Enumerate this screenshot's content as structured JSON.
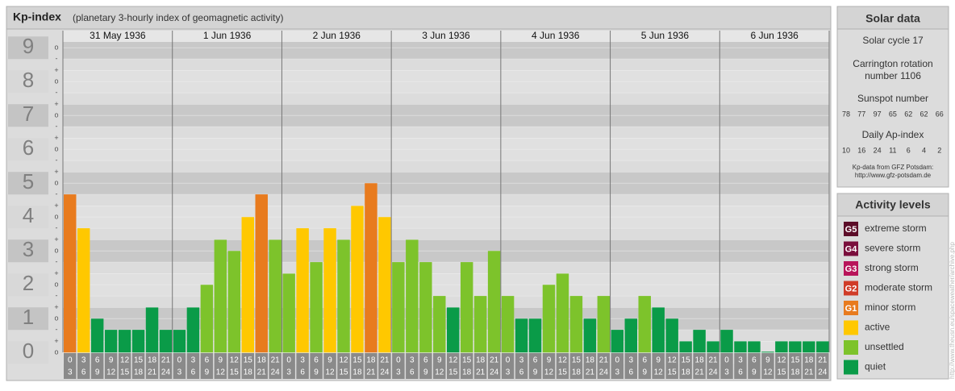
{
  "chart_data": {
    "type": "bar",
    "title": "Kp-index",
    "subtitle": "(planetary 3-hourly index of geomagnetic activity)",
    "ylim": [
      -0.33,
      9.33
    ],
    "yticks": [
      0,
      1,
      2,
      3,
      4,
      5,
      6,
      7,
      8,
      9
    ],
    "minor_yticks": [
      {
        "value": 0,
        "label": "o"
      },
      {
        "value": 0.33,
        "label": "+"
      },
      {
        "value": 0.67,
        "label": "-"
      },
      {
        "value": 1,
        "label": "o"
      },
      {
        "value": 1.33,
        "label": "+"
      },
      {
        "value": 1.67,
        "label": "-"
      },
      {
        "value": 2,
        "label": "o"
      },
      {
        "value": 2.33,
        "label": "+"
      },
      {
        "value": 2.67,
        "label": "-"
      },
      {
        "value": 3,
        "label": "o"
      },
      {
        "value": 3.33,
        "label": "+"
      },
      {
        "value": 3.67,
        "label": "-"
      },
      {
        "value": 4,
        "label": "o"
      },
      {
        "value": 4.33,
        "label": "+"
      },
      {
        "value": 4.67,
        "label": "-"
      },
      {
        "value": 5,
        "label": "o"
      },
      {
        "value": 5.33,
        "label": "+"
      },
      {
        "value": 5.67,
        "label": "-"
      },
      {
        "value": 6,
        "label": "o"
      },
      {
        "value": 6.33,
        "label": "+"
      },
      {
        "value": 6.67,
        "label": "-"
      },
      {
        "value": 7,
        "label": "o"
      },
      {
        "value": 7.33,
        "label": "+"
      },
      {
        "value": 7.67,
        "label": "-"
      },
      {
        "value": 8,
        "label": "o"
      },
      {
        "value": 8.33,
        "label": "+"
      },
      {
        "value": 8.67,
        "label": "-"
      },
      {
        "value": 9,
        "label": "o"
      }
    ],
    "hour_labels": [
      [
        "0",
        "3"
      ],
      [
        "3",
        "6"
      ],
      [
        "6",
        "9"
      ],
      [
        "9",
        "12"
      ],
      [
        "12",
        "15"
      ],
      [
        "15",
        "18"
      ],
      [
        "18",
        "21"
      ],
      [
        "21",
        "24"
      ]
    ],
    "days": [
      {
        "date": "31 May 1936",
        "values": [
          4.67,
          3.67,
          1,
          0.67,
          0.67,
          0.67,
          1.33,
          0.67
        ],
        "colors": [
          "#e87b1e",
          "#ffc800",
          "#0a9b48",
          "#0a9b48",
          "#0a9b48",
          "#0a9b48",
          "#0a9b48",
          "#0a9b48"
        ]
      },
      {
        "date": "1 Jun 1936",
        "values": [
          0.67,
          1.33,
          2,
          3.33,
          3,
          4,
          4.67,
          3.33
        ],
        "colors": [
          "#0a9b48",
          "#0a9b48",
          "#7dc32b",
          "#7dc32b",
          "#7dc32b",
          "#ffc800",
          "#e87b1e",
          "#7dc32b"
        ]
      },
      {
        "date": "2 Jun 1936",
        "values": [
          2.33,
          3.67,
          2.67,
          3.67,
          3.33,
          4.33,
          5,
          4
        ],
        "colors": [
          "#7dc32b",
          "#ffc800",
          "#7dc32b",
          "#ffc800",
          "#7dc32b",
          "#ffc800",
          "#e87b1e",
          "#ffc800"
        ]
      },
      {
        "date": "3 Jun 1936",
        "values": [
          2.67,
          3.33,
          2.67,
          1.67,
          1.33,
          2.67,
          1.67,
          3
        ],
        "colors": [
          "#7dc32b",
          "#7dc32b",
          "#7dc32b",
          "#7dc32b",
          "#0a9b48",
          "#7dc32b",
          "#7dc32b",
          "#7dc32b"
        ]
      },
      {
        "date": "4 Jun 1936",
        "values": [
          1.67,
          1,
          1,
          2,
          2.33,
          1.67,
          1,
          1.67
        ],
        "colors": [
          "#7dc32b",
          "#0a9b48",
          "#0a9b48",
          "#7dc32b",
          "#7dc32b",
          "#7dc32b",
          "#0a9b48",
          "#7dc32b"
        ]
      },
      {
        "date": "5 Jun 1936",
        "values": [
          0.67,
          1,
          1.67,
          1.33,
          1,
          0.33,
          0.67,
          0.33
        ],
        "colors": [
          "#0a9b48",
          "#0a9b48",
          "#7dc32b",
          "#0a9b48",
          "#0a9b48",
          "#0a9b48",
          "#0a9b48",
          "#0a9b48"
        ]
      },
      {
        "date": "6 Jun 1936",
        "values": [
          0.67,
          0.33,
          0.33,
          0,
          0.33,
          0.33,
          0.33,
          0.33
        ],
        "colors": [
          "#0a9b48",
          "#0a9b48",
          "#0a9b48",
          "#0a9b48",
          "#0a9b48",
          "#0a9b48",
          "#0a9b48",
          "#0a9b48"
        ]
      }
    ]
  },
  "solar_data": {
    "title": "Solar data",
    "solar_cycle": "Solar cycle 17",
    "carrington_line1": "Carrington rotation",
    "carrington_line2": "number 1106",
    "sunspot_title": "Sunspot number",
    "sunspot_values": [
      78,
      77,
      97,
      65,
      62,
      62,
      66
    ],
    "ap_title": "Daily Ap-index",
    "ap_values": [
      10,
      16,
      24,
      11,
      6,
      4,
      2
    ],
    "source_line1": "Kp-data from GFZ Potsdam:",
    "source_line2": "http://www.gfz-potsdam.de"
  },
  "activity_levels": {
    "title": "Activity levels",
    "items": [
      {
        "badge": "G5",
        "color": "#5c0c28",
        "label": "extreme storm"
      },
      {
        "badge": "G4",
        "color": "#7a0e3c",
        "label": "severe storm"
      },
      {
        "badge": "G3",
        "color": "#b8145a",
        "label": "strong storm"
      },
      {
        "badge": "G2",
        "color": "#d03c28",
        "label": "moderate storm"
      },
      {
        "badge": "G1",
        "color": "#e87b1e",
        "label": "minor storm"
      },
      {
        "color": "#ffc800",
        "label": "active"
      },
      {
        "color": "#7dc32b",
        "label": "unsettled"
      },
      {
        "color": "#0a9b48",
        "label": "quiet"
      }
    ]
  },
  "watermark": "http://www.theusn.eu/spaceweather/archive.php"
}
